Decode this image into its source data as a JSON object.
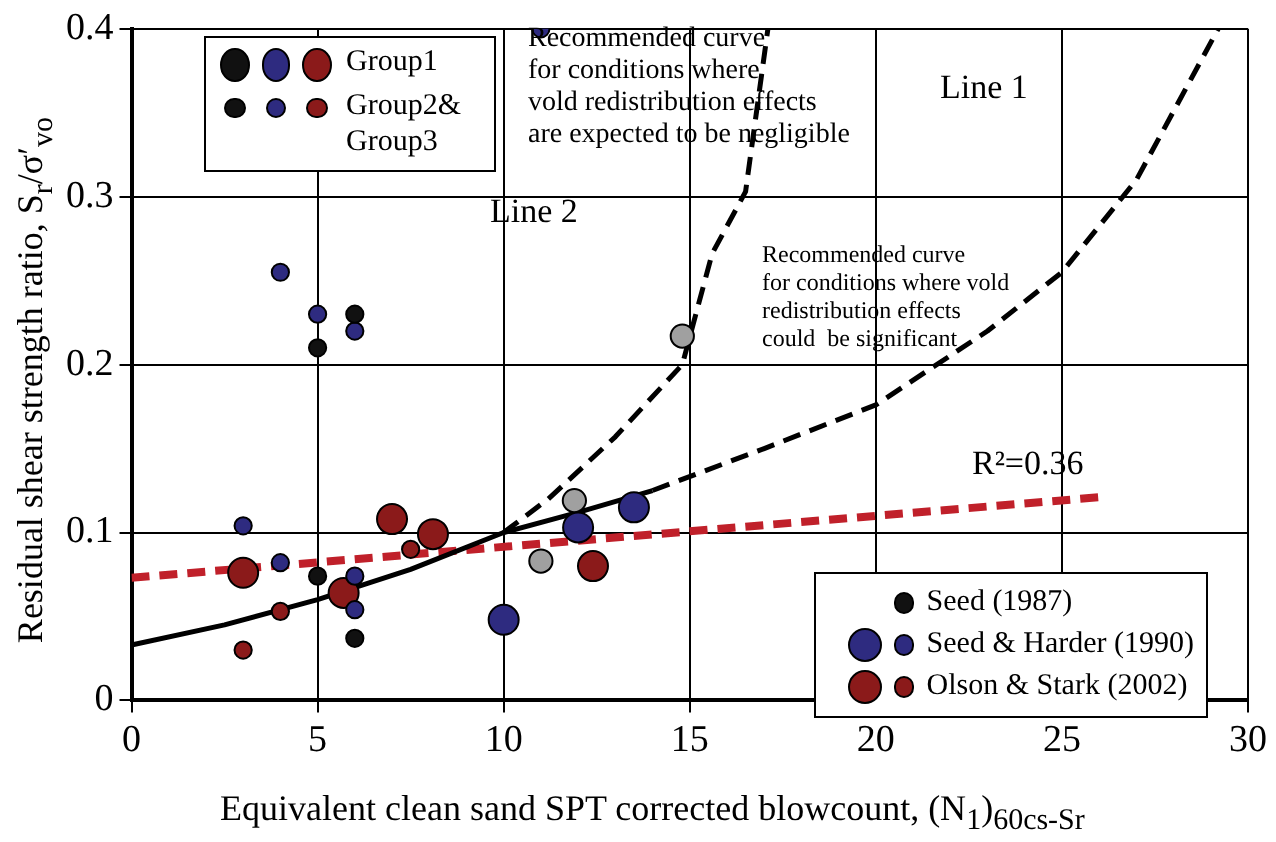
{
  "chart_data": {
    "type": "bubble",
    "xlabel": "Equivalent clean sand SPT corrected blowcount, (N$_{1}$)$_{60cs-Sr}$",
    "ylabel": "Residual shear strength ratio, S$_{r}$/σ′$_{vo}$",
    "xlim": [
      0,
      30
    ],
    "xticks": [
      0,
      5,
      10,
      15,
      20,
      25,
      30
    ],
    "ylim": [
      0,
      0.4
    ],
    "yticks": [
      0,
      0.1,
      0.2,
      0.3,
      0.4
    ],
    "grid": true,
    "legend": "bottom right",
    "marker": "circle",
    "series": [
      {
        "name": "Seed (1987)",
        "color": "#111111",
        "x": [
          5,
          6,
          5,
          6
        ],
        "values": [
          0.21,
          0.23,
          0.074,
          0.037
        ],
        "sizes": [
          0.33,
          0.33,
          0.33,
          0.33
        ]
      },
      {
        "name": "Seed & Harder (1990)",
        "color": "#2e2b80",
        "x": [
          10,
          13.5,
          12
        ],
        "values": [
          0.048,
          0.115,
          0.103
        ],
        "sizes": [
          1,
          1,
          1
        ]
      },
      {
        "color": "#2e2b80",
        "x": [
          4,
          5,
          6,
          3,
          4,
          6,
          6,
          11
        ],
        "values": [
          0.255,
          0.23,
          0.22,
          0.104,
          0.082,
          0.074,
          0.054,
          0.4
        ],
        "sizes": [
          0.33,
          0.33,
          0.33,
          0.33,
          0.33,
          0.33,
          0.33,
          0.33
        ]
      },
      {
        "name": "Olson & Stark (2002)",
        "color": "#8b1a1a",
        "x": [
          7,
          8.1,
          5.7,
          3,
          12.4
        ],
        "values": [
          0.108,
          0.099,
          0.064,
          0.076,
          0.08
        ],
        "sizes": [
          1,
          1,
          1,
          1,
          1
        ]
      },
      {
        "color": "#8b1a1a",
        "x": [
          4,
          3,
          7.5
        ],
        "values": [
          0.053,
          0.03,
          0.09
        ],
        "sizes": [
          0.33,
          0.33,
          0.33
        ]
      },
      {
        "color": "#a0a0a0",
        "x": [
          11,
          11.9,
          14.8
        ],
        "values": [
          0.083,
          0.119,
          0.217
        ],
        "sizes": [
          0.6,
          0.6,
          0.6
        ]
      },
      {
        "type": "line",
        "color": "#000000",
        "line_style": "solid",
        "marker": "none",
        "x": [
          0,
          2.5,
          5,
          7.5,
          10,
          12,
          14
        ],
        "values": [
          0.033,
          0.045,
          0.06,
          0.078,
          0.1,
          0.112,
          0.125
        ]
      },
      {
        "type": "line",
        "color": "#000000",
        "line_style": "dashed",
        "marker": "none",
        "x": [
          14,
          17,
          20,
          23,
          25,
          27,
          29.2
        ],
        "values": [
          0.125,
          0.15,
          0.176,
          0.22,
          0.255,
          0.31,
          0.4
        ]
      },
      {
        "type": "line",
        "color": "#000000",
        "line_style": "dashed",
        "marker": "none",
        "x": [
          10,
          11.2,
          13,
          14.8,
          15.6,
          16.5,
          17.1
        ],
        "values": [
          0.1,
          0.12,
          0.157,
          0.2,
          0.266,
          0.303,
          0.4
        ]
      },
      {
        "type": "line",
        "color": "#c0202a",
        "line_style": "dashed",
        "marker": "none",
        "x": [
          0,
          26
        ],
        "values": [
          0.073,
          0.121
        ]
      }
    ],
    "annotations": [
      "Group1",
      "Group2&\nGroup3",
      "Recommended curve\nfor conditions where\nvold redistribution effects\nare expected to be negligible",
      "Line 2",
      "Line 1",
      "Recommended curve\nfor conditions where vold\nredistribution effects\ncould  be significant",
      "R²=0.36"
    ]
  }
}
